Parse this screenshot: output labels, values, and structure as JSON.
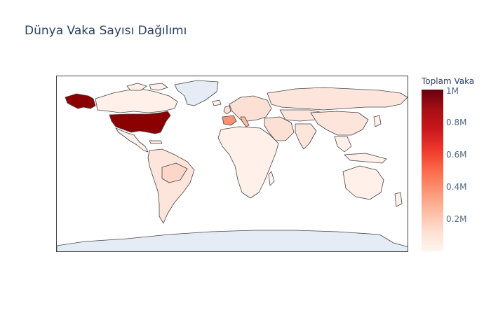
{
  "title": "Dünya Vaka Sayısı Dağılımı",
  "colorbar": {
    "title": "Toplam Vaka",
    "ticks": [
      {
        "label": "1M",
        "value": 1000000
      },
      {
        "label": "0.8M",
        "value": 800000
      },
      {
        "label": "0.6M",
        "value": 600000
      },
      {
        "label": "0.4M",
        "value": 400000
      },
      {
        "label": "0.2M",
        "value": 200000
      }
    ],
    "range": [
      0,
      1000000
    ],
    "colorscale": "Reds",
    "colors": [
      "#fff5f0",
      "#fee0d2",
      "#fcbba1",
      "#fc9272",
      "#fb6a4a",
      "#ef3b2c",
      "#cb181d",
      "#a50f15",
      "#67000d"
    ]
  },
  "map": {
    "projection": "equirectangular",
    "missing_color": "#e5ecf6",
    "border_color": "#444444",
    "highlighted_regions": [
      {
        "name": "United States",
        "level": "max",
        "color": "#8b0000"
      },
      {
        "name": "Spain",
        "level": "medium",
        "color": "#fc9272"
      },
      {
        "name": "Italy",
        "level": "medium",
        "color": "#fcbba1"
      },
      {
        "name": "Greenland",
        "level": "no data",
        "color": "#e5ecf6"
      },
      {
        "name": "Antarctica",
        "level": "no data",
        "color": "#e5ecf6"
      }
    ]
  }
}
